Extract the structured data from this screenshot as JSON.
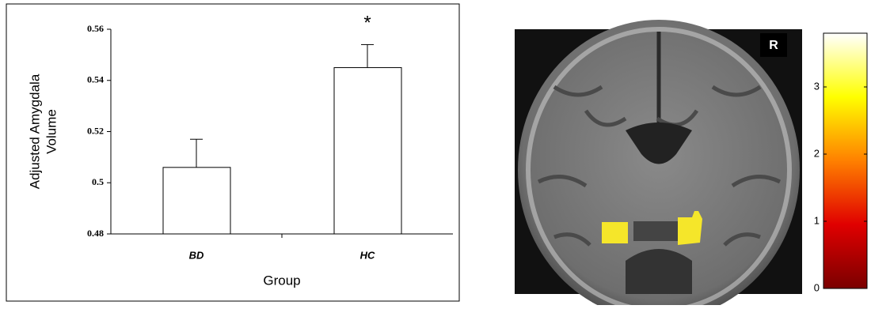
{
  "chart_data": [
    {
      "type": "bar",
      "ylabel": [
        "Adjusted Amygdala",
        "Volume"
      ],
      "xlabel": "Group",
      "categories": [
        "BD",
        "HC"
      ],
      "values": [
        0.506,
        0.545
      ],
      "errors": [
        0.011,
        0.009
      ],
      "annotations": [
        {
          "text": "*",
          "category": 1
        }
      ],
      "ylim": [
        0.48,
        0.56
      ],
      "yticks": [
        0.48,
        0.5,
        0.52,
        0.54,
        0.56
      ],
      "color": "#ffffff"
    },
    {
      "type": "colorbar",
      "annotation": "R",
      "ylim": [
        0,
        3.8
      ],
      "yticks": [
        0,
        1,
        2,
        3
      ],
      "colormap": [
        "#7a0000",
        "#e00000",
        "#ff8000",
        "#ffff00",
        "#ffffff"
      ]
    }
  ]
}
